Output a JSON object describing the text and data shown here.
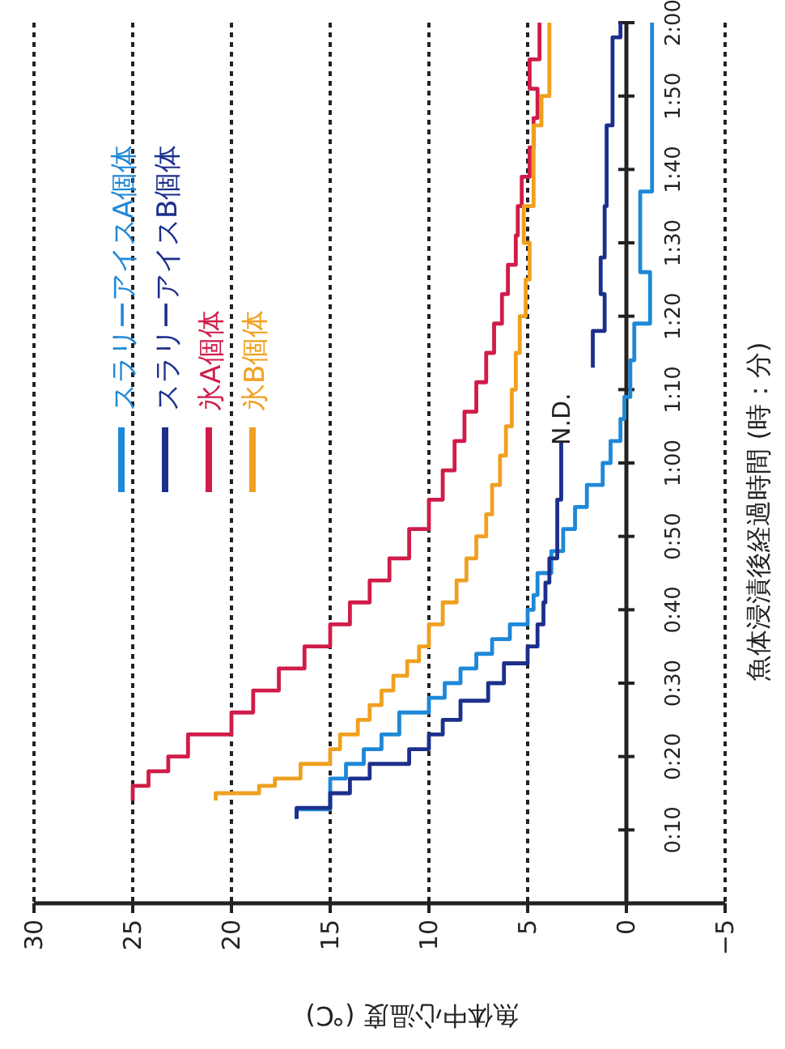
{
  "chart_data": {
    "type": "line",
    "xlabel": "魚体中心温度 (℃)",
    "ylabel": "魚体浸漬後経過時間 (時：分)",
    "xlim": [
      30,
      -5
    ],
    "xticks": [
      30,
      25,
      20,
      15,
      10,
      5,
      0,
      {
        "value": -5,
        "label": "−5"
      }
    ],
    "ylim": [
      0,
      120
    ],
    "yticks": [
      {
        "value": 10,
        "label": "0:10"
      },
      {
        "value": 20,
        "label": "0:20"
      },
      {
        "value": 30,
        "label": "0:30"
      },
      {
        "value": 40,
        "label": "0:40"
      },
      {
        "value": 50,
        "label": "0:50"
      },
      {
        "value": 60,
        "label": "1:00"
      },
      {
        "value": 70,
        "label": "1:10"
      },
      {
        "value": 80,
        "label": "1:20"
      },
      {
        "value": 90,
        "label": "1:30"
      },
      {
        "value": 100,
        "label": "1:40"
      },
      {
        "value": 110,
        "label": "1:50"
      },
      {
        "value": 120,
        "label": "2:00"
      }
    ],
    "grid": "x",
    "legend": "top left",
    "marker": "none",
    "line_style": "solid",
    "series": [
      {
        "name": "スラリーアイスA個体",
        "color": "#1e88d8",
        "x": [
          16.7,
          16.7,
          15,
          15,
          14.2,
          14.2,
          13.3,
          13.3,
          12.4,
          12.4,
          11.5,
          11.5,
          10,
          10,
          9.2,
          9.2,
          8.4,
          8.4,
          7.6,
          7.6,
          6.8,
          6.8,
          5.9,
          5.9,
          5,
          5,
          4.7,
          4.7,
          4.5,
          4.5,
          3.8,
          3.8,
          3.2,
          3.2,
          2.6,
          2.6,
          2,
          2,
          1.2,
          1.2,
          0.8,
          0.8,
          0.3,
          0.3,
          0.1,
          0.1,
          -0.2,
          -0.2,
          -0.4,
          -0.4,
          -1.2,
          -1.2,
          -0.7,
          -0.7,
          -1.3,
          -1.3
        ],
        "values": [
          11.7,
          12.8,
          12.8,
          17,
          17,
          19,
          19,
          21,
          21,
          23,
          23,
          26,
          26,
          28,
          28,
          30,
          30,
          32,
          32,
          34,
          34,
          36,
          36,
          38,
          38,
          40,
          40,
          42,
          42,
          45,
          45,
          48,
          48,
          51,
          51,
          54,
          54,
          57,
          57,
          60,
          60,
          63,
          63,
          66,
          66,
          69,
          69,
          74,
          74,
          79,
          79,
          86,
          86,
          97,
          97,
          120
        ]
      },
      {
        "name": "スラリーアイスB個体",
        "color": "#1c2f8c",
        "x": [
          16.7,
          16.7,
          15,
          15,
          14,
          14,
          13,
          13,
          11,
          11,
          10,
          10,
          9.3,
          9.3,
          8.4,
          8.4,
          7,
          7,
          6.2,
          6.2,
          5,
          5,
          4.5,
          4.5,
          4.2,
          4.2,
          4.1,
          4.1,
          3.9,
          3.9,
          3.5,
          3.5,
          3.3,
          3.3,
          null,
          1.7,
          1.7,
          1.1,
          1.1,
          1.3,
          1.3,
          1.1,
          1.1,
          1.0,
          1.0,
          0.7,
          0.7,
          0.3,
          0.3
        ],
        "values": [
          11.5,
          13,
          13,
          15,
          15,
          17,
          17,
          19,
          19,
          21,
          21,
          23,
          23,
          25,
          25,
          27.6,
          27.6,
          30,
          30,
          32.7,
          32.7,
          35,
          35,
          38,
          38,
          41,
          41,
          43.7,
          43.7,
          47,
          47,
          55,
          55,
          63,
          null,
          73,
          78,
          78,
          83,
          83,
          88,
          88,
          95,
          95,
          106,
          106,
          118,
          118,
          120
        ]
      },
      {
        "name": "氷A個体",
        "color": "#d01c4a",
        "x": [
          25,
          25,
          24.2,
          24.2,
          23.2,
          23.2,
          22.2,
          22.2,
          20,
          20,
          18.9,
          18.9,
          17.6,
          17.6,
          16.3,
          16.3,
          15,
          15,
          14,
          14,
          13,
          13,
          12,
          12,
          11,
          11,
          10,
          10,
          9.3,
          9.3,
          8.7,
          8.7,
          8.2,
          8.2,
          7.6,
          7.6,
          7.1,
          7.1,
          6.7,
          6.7,
          6.3,
          6.3,
          6,
          6,
          5.6,
          5.6,
          5.5,
          5.5,
          5.3,
          5.3,
          4.9,
          4.9,
          4.7,
          4.7,
          4.5,
          4.5,
          4.9,
          4.9,
          4.4,
          4.4
        ],
        "values": [
          14,
          16,
          16,
          18,
          18,
          20,
          20,
          23,
          23,
          26,
          26,
          29,
          29,
          32,
          32,
          35,
          35,
          38,
          38,
          41,
          41,
          44,
          44,
          47,
          47,
          51,
          51,
          55,
          55,
          59,
          59,
          63,
          63,
          67,
          67,
          71,
          71,
          75,
          75,
          79,
          79,
          83,
          83,
          87,
          87,
          91,
          91,
          95,
          95,
          99,
          99,
          103,
          103,
          107,
          107,
          111,
          111,
          115,
          115,
          120
        ]
      },
      {
        "name": "氷B個体",
        "color": "#f0a020",
        "x": [
          20.8,
          20.8,
          18.6,
          18.6,
          17.8,
          17.8,
          16.5,
          16.5,
          15,
          15,
          14.5,
          14.5,
          13.6,
          13.6,
          13,
          13,
          12.4,
          12.4,
          11.8,
          11.8,
          11.1,
          11.1,
          10.5,
          10.5,
          10,
          10,
          9.3,
          9.3,
          8.6,
          8.6,
          8.1,
          8.1,
          7.6,
          7.6,
          7.1,
          7.1,
          6.8,
          6.8,
          6.4,
          6.4,
          6.1,
          6.1,
          5.8,
          5.8,
          5.6,
          5.6,
          5.4,
          5.4,
          5.1,
          5.1,
          4.9,
          4.9,
          5.2,
          5.2,
          4.7,
          4.7,
          4.3,
          4.3,
          3.9,
          3.9
        ],
        "values": [
          14,
          15,
          15,
          16,
          16,
          17,
          17,
          19,
          19,
          21,
          21,
          23,
          23,
          25,
          25,
          27,
          27,
          29,
          29,
          31,
          31,
          33,
          33,
          35,
          35,
          38,
          38,
          41,
          41,
          44,
          44,
          47,
          47,
          50,
          50,
          53,
          53,
          57,
          57,
          61,
          61,
          65,
          65,
          70,
          70,
          75,
          75,
          80,
          80,
          85,
          85,
          90,
          90,
          95,
          95,
          106,
          106,
          110,
          110,
          120
        ]
      }
    ],
    "annotations": [
      "N.D."
    ]
  }
}
